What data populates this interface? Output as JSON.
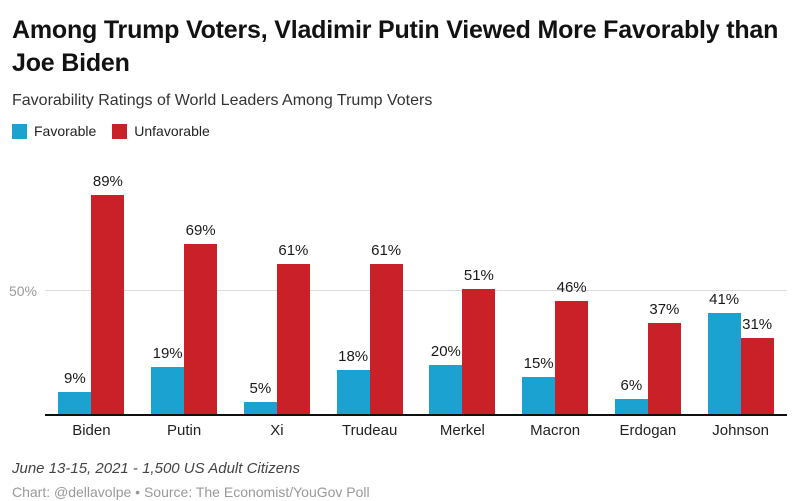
{
  "header": {
    "title": "Among Trump Voters, Vladimir Putin Viewed More Favorably than Joe Biden",
    "subtitle": "Favorability Ratings of World Leaders Among Trump Voters"
  },
  "legend": {
    "items": [
      {
        "label": "Favorable",
        "color": "#1BA2D1"
      },
      {
        "label": "Unfavorable",
        "color": "#C92127"
      }
    ]
  },
  "chart_data": {
    "type": "bar",
    "categories": [
      "Biden",
      "Putin",
      "Xi",
      "Trudeau",
      "Merkel",
      "Macron",
      "Erdogan",
      "Johnson"
    ],
    "series": [
      {
        "name": "Favorable",
        "color": "#1BA2D1",
        "values": [
          9,
          19,
          5,
          18,
          20,
          15,
          6,
          41
        ]
      },
      {
        "name": "Unfavorable",
        "color": "#C92127",
        "values": [
          89,
          69,
          61,
          61,
          51,
          46,
          37,
          31
        ]
      }
    ],
    "value_suffix": "%",
    "data_labels": true,
    "title": "Among Trump Voters, Vladimir Putin Viewed More Favorably than Joe Biden",
    "subtitle": "Favorability Ratings of World Leaders Among Trump Voters",
    "xlabel": "",
    "ylabel": "",
    "ylim": [
      0,
      100
    ],
    "yticks": [
      {
        "value": 50,
        "label": "50%"
      }
    ],
    "grid": "horizontal",
    "legend_position": "top-left"
  },
  "footer": {
    "note": "June 13-15, 2021 - 1,500 US Adult Citizens",
    "credit": "Chart: @dellavolpe • Source: The Economist/YouGov Poll"
  }
}
